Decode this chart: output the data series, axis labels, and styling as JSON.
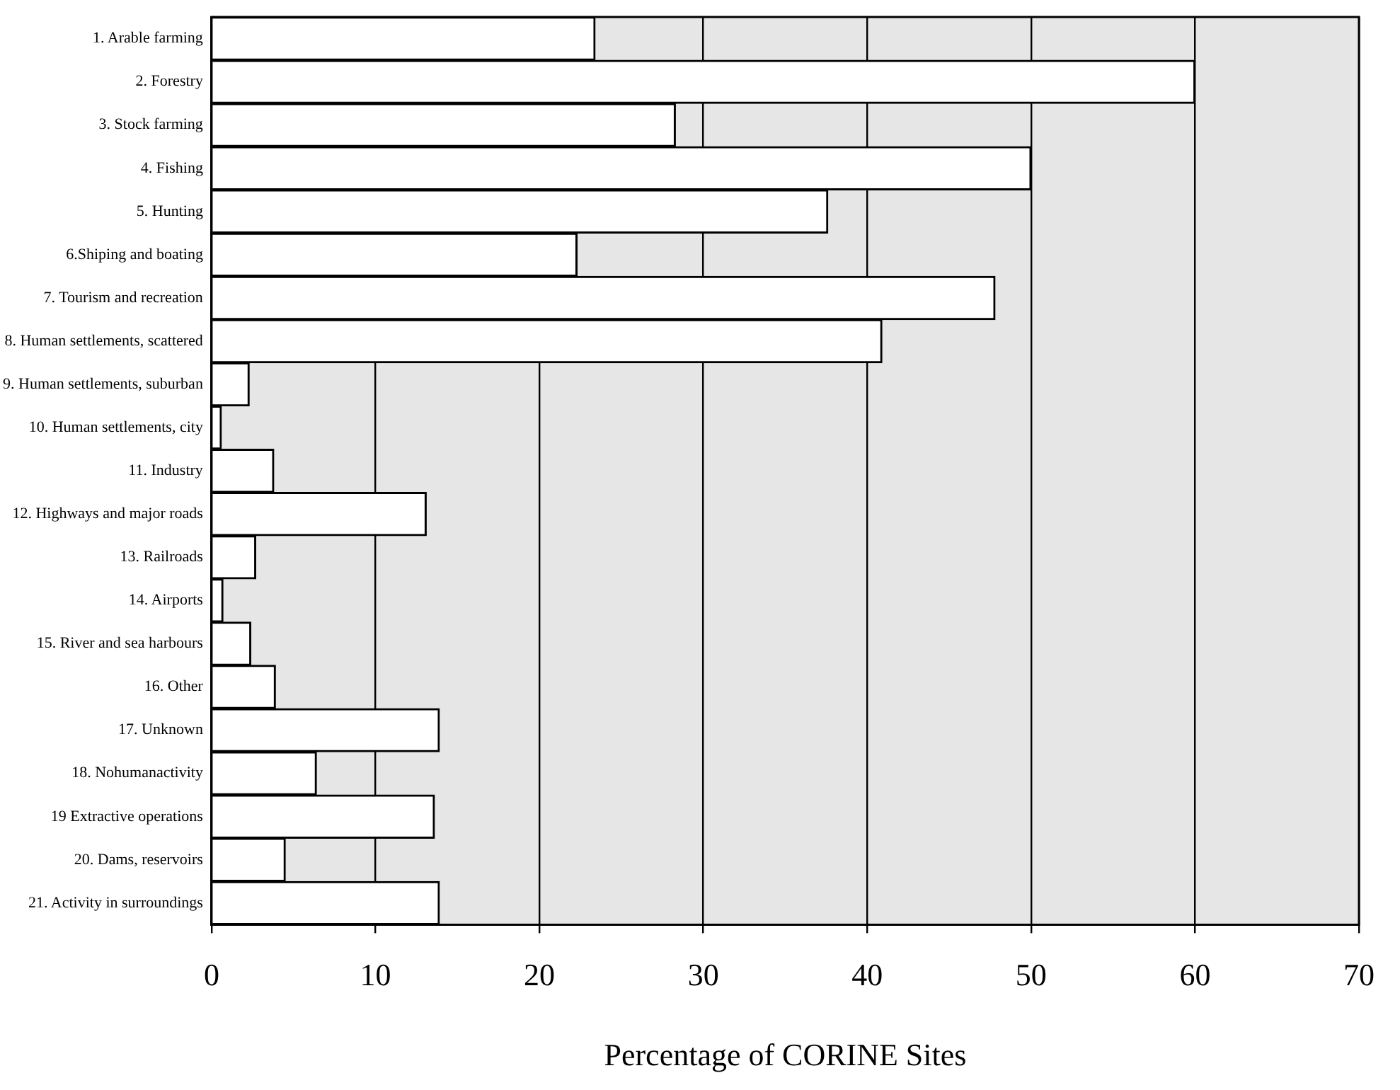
{
  "chart_data": {
    "type": "bar",
    "orientation": "horizontal",
    "xlabel": "Percentage of CORINE Sites",
    "categories": [
      "1. Arable farming",
      "2. Forestry",
      "3. Stock farming",
      "4. Fishing",
      "5. Hunting",
      "6.Shiping and boating",
      "7. Tourism and recreation",
      "8. Human settlements, scattered",
      "9. Human settlements, suburban",
      "10. Human settlements, city",
      "11. Industry",
      "12. Highways and major roads",
      "13. Railroads",
      "14. Airports",
      "15. River and sea harbours",
      "16. Other",
      "17. Unknown",
      "18. Nohumanactivity",
      "19 Extractive operations",
      "20. Dams, reservoirs",
      "21. Activity in surroundings"
    ],
    "values": [
      23.4,
      60,
      28.3,
      50,
      37.6,
      22.3,
      47.8,
      40.9,
      2.3,
      0.6,
      3.8,
      13.1,
      2.7,
      0.7,
      2.4,
      3.9,
      13.9,
      6.4,
      13.6,
      4.5,
      13.9
    ],
    "color": "#ffffff",
    "xlim": [
      0,
      70
    ],
    "xticks": [
      0,
      10,
      20,
      30,
      40,
      50,
      60,
      70
    ],
    "grid": "x"
  }
}
